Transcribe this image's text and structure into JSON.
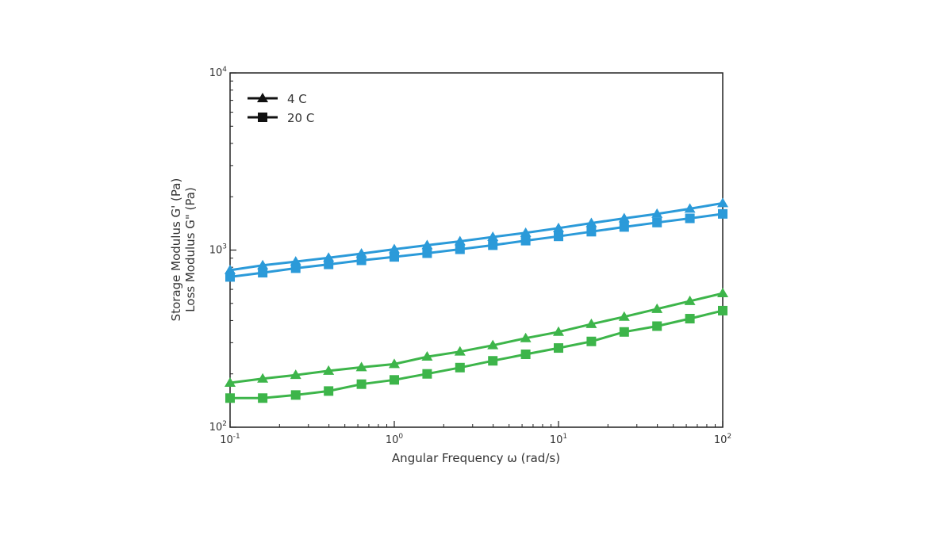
{
  "chart_data": {
    "type": "line",
    "xscale": "log",
    "yscale": "log",
    "xlim": [
      0.1,
      100
    ],
    "ylim": [
      100,
      10000
    ],
    "xlabel": "Angular Frequency ω (rad/s)",
    "ylabel_storage": "Storage Modulus G' (Pa)",
    "ylabel_loss": "Loss Modulus G\" (Pa)",
    "x_ticks": [
      {
        "value": 0.1,
        "base": "10",
        "exp": "-1"
      },
      {
        "value": 1,
        "base": "10",
        "exp": "0"
      },
      {
        "value": 10,
        "base": "10",
        "exp": "1"
      },
      {
        "value": 100,
        "base": "10",
        "exp": "2"
      }
    ],
    "y_ticks": [
      {
        "value": 100,
        "base": "10",
        "exp": "2"
      },
      {
        "value": 1000,
        "base": "10",
        "exp": "3"
      },
      {
        "value": 10000,
        "base": "10",
        "exp": "4"
      }
    ],
    "legend": {
      "position": "top-left",
      "entries": [
        {
          "label": "4 C",
          "marker": "triangle"
        },
        {
          "label": "20 C",
          "marker": "square"
        }
      ]
    },
    "colors": {
      "storage": "#2b9ad9",
      "loss": "#3db54a",
      "legend": "#111111",
      "axis": "#222222"
    },
    "x": [
      0.1,
      0.158,
      0.251,
      0.398,
      0.631,
      1.0,
      1.585,
      2.512,
      3.981,
      6.31,
      10.0,
      15.85,
      25.12,
      39.81,
      63.1,
      100.0
    ],
    "series": [
      {
        "name": "4 C",
        "modulus": "storage",
        "marker": "triangle",
        "values": [
          770,
          820,
          860,
          905,
          955,
          1010,
          1065,
          1120,
          1185,
          1250,
          1330,
          1420,
          1510,
          1600,
          1710,
          1840
        ]
      },
      {
        "name": "20 C",
        "modulus": "storage",
        "marker": "square",
        "values": [
          705,
          745,
          790,
          830,
          875,
          915,
          960,
          1010,
          1065,
          1130,
          1195,
          1270,
          1350,
          1430,
          1510,
          1600
        ]
      },
      {
        "name": "4 C",
        "modulus": "loss",
        "marker": "triangle",
        "values": [
          178,
          188,
          197,
          208,
          218,
          227,
          250,
          267,
          290,
          318,
          345,
          382,
          420,
          465,
          515,
          570
        ]
      },
      {
        "name": "20 C",
        "modulus": "loss",
        "marker": "square",
        "values": [
          146,
          146,
          152,
          160,
          175,
          185,
          200,
          217,
          237,
          258,
          280,
          305,
          345,
          372,
          410,
          455
        ]
      }
    ]
  }
}
